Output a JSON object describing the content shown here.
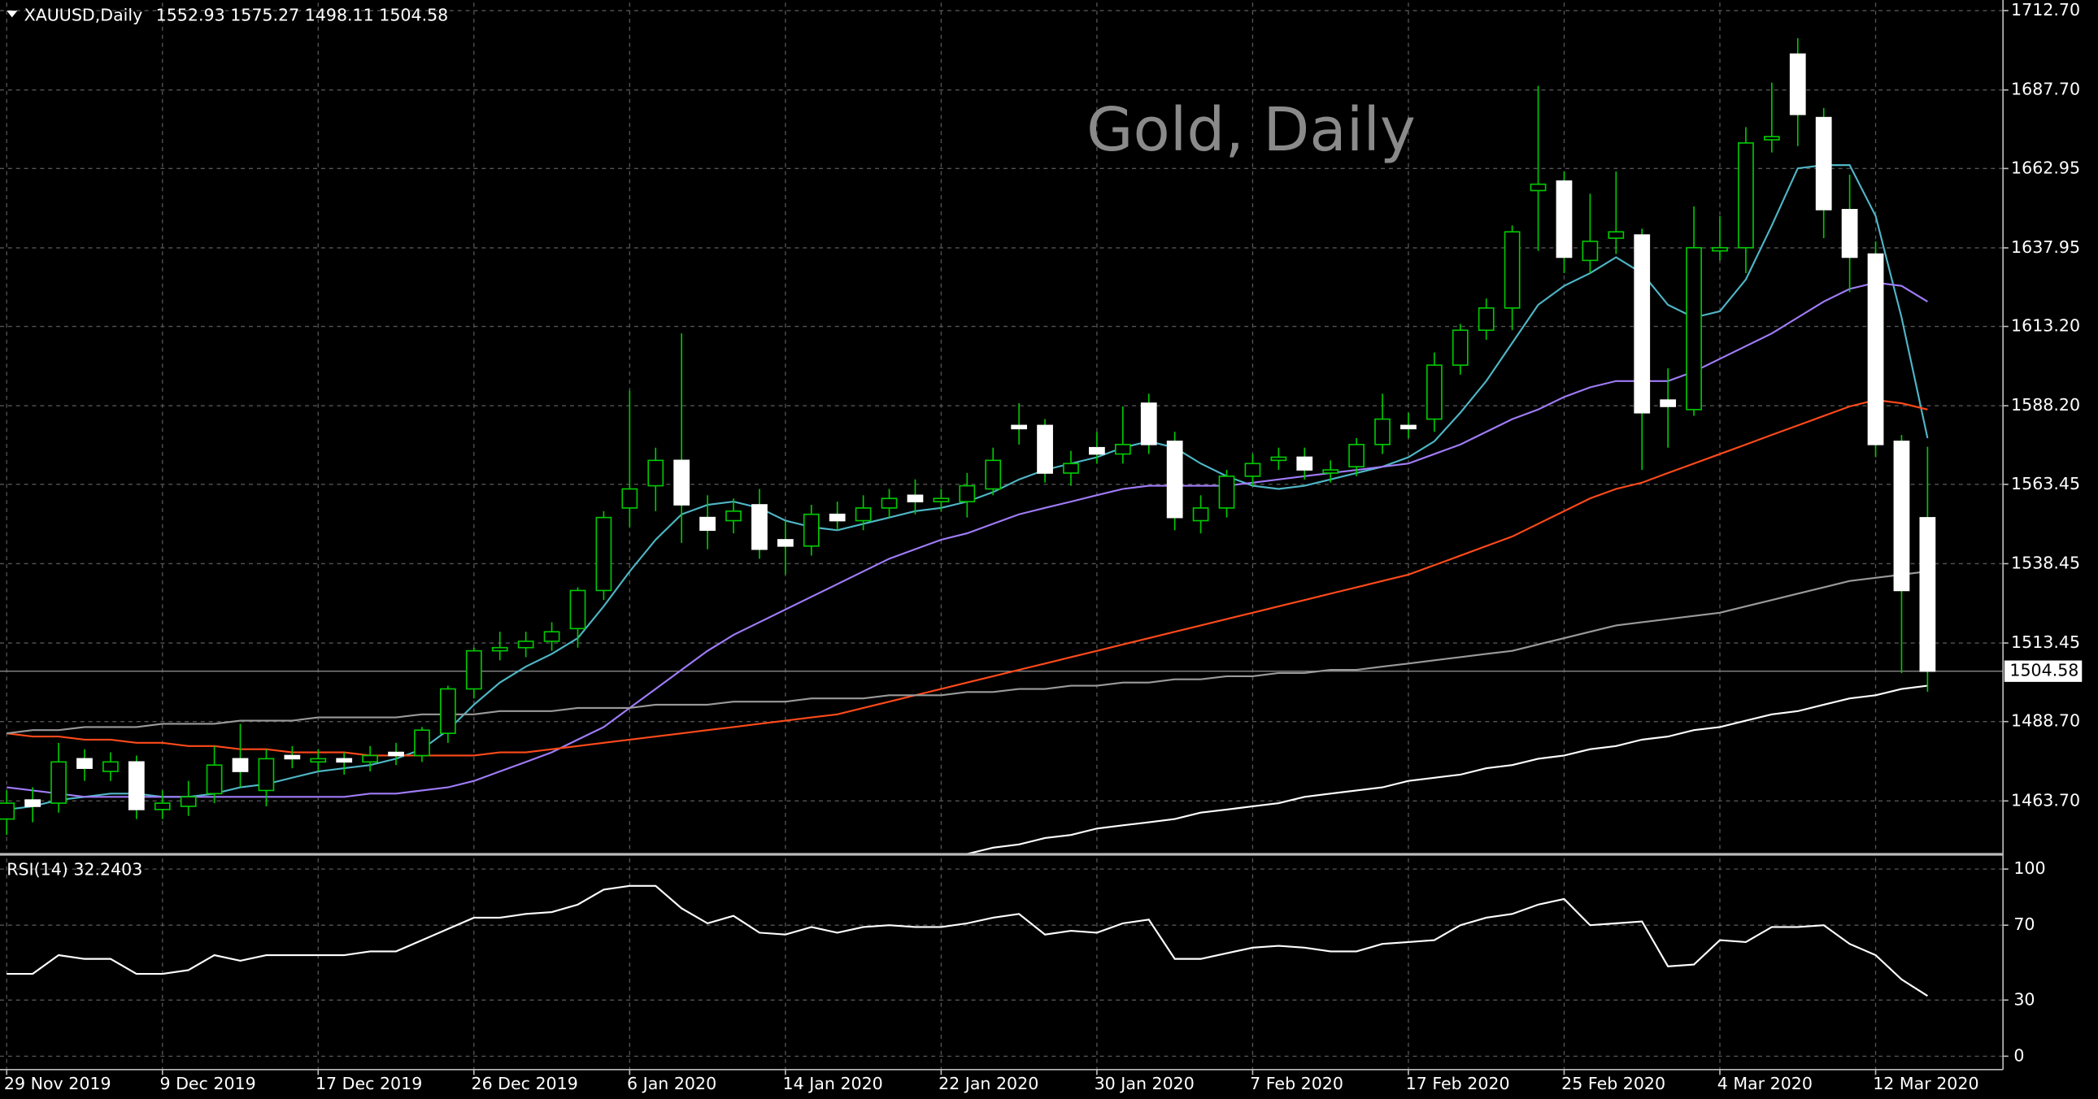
{
  "chart_data": {
    "type": "candlestick",
    "symbol": "XAUUSD,Daily",
    "title": "Gold, Daily",
    "categories": [
      "29 Nov 2019",
      null,
      null,
      null,
      null,
      null,
      "9 Dec 2019",
      null,
      null,
      null,
      null,
      null,
      "17 Dec 2019",
      null,
      null,
      null,
      null,
      null,
      "26 Dec 2019",
      null,
      null,
      null,
      null,
      null,
      "6 Jan 2020",
      null,
      null,
      null,
      null,
      null,
      "14 Jan 2020",
      null,
      null,
      null,
      null,
      null,
      "22 Jan 2020",
      null,
      null,
      null,
      null,
      null,
      "30 Jan 2020",
      null,
      null,
      null,
      null,
      null,
      "7 Feb 2020",
      null,
      null,
      null,
      null,
      null,
      "17 Feb 2020",
      null,
      null,
      null,
      null,
      null,
      "25 Feb 2020",
      null,
      null,
      null,
      null,
      null,
      "4 Mar 2020",
      null,
      null,
      null,
      null,
      null,
      "12 Mar 2020",
      null,
      null
    ],
    "open": [
      1458,
      1464,
      1463,
      1477,
      1473,
      1476,
      1461,
      1462,
      1466,
      1477,
      1467,
      1478,
      1476,
      1477,
      1476,
      1479,
      1478,
      1485,
      1499,
      1511,
      1512,
      1514,
      1518,
      1530,
      1556,
      1563,
      1571,
      1553,
      1552,
      1557,
      1546,
      1544,
      1554,
      1552,
      1556,
      1560,
      1558,
      1558,
      1562,
      1582,
      1582,
      1567,
      1575,
      1573,
      1589,
      1577,
      1552,
      1556,
      1566,
      1571,
      1572,
      1567,
      1569,
      1576,
      1582,
      1584,
      1601,
      1612,
      1619,
      1656,
      1659,
      1634,
      1641,
      1642,
      1590,
      1587,
      1637,
      1638,
      1672,
      1699,
      1679,
      1650,
      1636,
      1577,
      1552.93
    ],
    "high": [
      1467,
      1468,
      1482,
      1480,
      1479,
      1478,
      1467,
      1470,
      1481,
      1488,
      1480,
      1481,
      1480,
      1479,
      1481,
      1482,
      1487,
      1500,
      1512,
      1517,
      1517,
      1520,
      1531,
      1555,
      1593,
      1575,
      1611,
      1560,
      1559,
      1562,
      1552,
      1557,
      1558,
      1560,
      1562,
      1565,
      1562,
      1567,
      1575,
      1589,
      1584,
      1574,
      1580,
      1588,
      1592,
      1580,
      1560,
      1568,
      1573,
      1575,
      1575,
      1571,
      1578,
      1592,
      1586,
      1605,
      1614,
      1622,
      1645,
      1689,
      1662,
      1655,
      1662,
      1644,
      1600,
      1651,
      1648,
      1676,
      1690,
      1704,
      1682,
      1661,
      1640,
      1579,
      1575.27
    ],
    "low": [
      1453,
      1457,
      1460,
      1470,
      1470,
      1458,
      1458,
      1459,
      1463,
      1468,
      1462,
      1474,
      1473,
      1472,
      1473,
      1475,
      1476,
      1482,
      1496,
      1508,
      1509,
      1511,
      1512,
      1527,
      1550,
      1555,
      1545,
      1543,
      1548,
      1540,
      1535,
      1541,
      1549,
      1549,
      1553,
      1554,
      1555,
      1553,
      1560,
      1576,
      1564,
      1563,
      1570,
      1570,
      1573,
      1549,
      1548,
      1553,
      1563,
      1568,
      1565,
      1564,
      1566,
      1573,
      1578,
      1580,
      1598,
      1609,
      1612,
      1637,
      1630,
      1630,
      1636,
      1568,
      1575,
      1585,
      1634,
      1630,
      1668,
      1670,
      1641,
      1624,
      1572,
      1504,
      1498.11
    ],
    "close": [
      1463,
      1462,
      1476,
      1474,
      1476,
      1461,
      1463,
      1465,
      1475,
      1473,
      1477,
      1477,
      1477,
      1476,
      1478,
      1478,
      1486,
      1499,
      1511,
      1512,
      1514,
      1517,
      1530,
      1553,
      1562,
      1571,
      1557,
      1549,
      1555,
      1543,
      1544,
      1554,
      1552,
      1556,
      1559,
      1558,
      1559,
      1563,
      1571,
      1581,
      1567,
      1570,
      1573,
      1576,
      1576,
      1553,
      1556,
      1566,
      1570,
      1572,
      1568,
      1568,
      1576,
      1584,
      1581,
      1601,
      1612,
      1619,
      1643,
      1658,
      1635,
      1640,
      1643,
      1586,
      1588,
      1638,
      1638,
      1671,
      1673,
      1680,
      1650,
      1635,
      1576,
      1530,
      1504.58
    ],
    "up_color": "#00c800",
    "up_fill": "#000000",
    "down_color": "#ffffff",
    "down_fill": "#ffffff",
    "ylim": [
      1447.3,
      1715.2
    ],
    "yticks": [
      {
        "value": 1712.7,
        "label": "1712.70"
      },
      {
        "value": 1687.7,
        "label": "1687.70"
      },
      {
        "value": 1662.95,
        "label": "1662.95"
      },
      {
        "value": 1637.95,
        "label": "1637.95"
      },
      {
        "value": 1613.2,
        "label": "1613.20"
      },
      {
        "value": 1588.2,
        "label": "1588.20"
      },
      {
        "value": 1563.45,
        "label": "1563.45"
      },
      {
        "value": 1538.45,
        "label": "1538.45"
      },
      {
        "value": 1513.45,
        "label": "1513.45"
      },
      {
        "value": 1488.7,
        "label": "1488.70"
      },
      {
        "value": 1463.7,
        "label": "1463.70"
      }
    ],
    "grid": true,
    "series": [
      {
        "color": "#4fb6c6",
        "values": [
          1461,
          1462,
          1464,
          1465,
          1466,
          1466,
          1465,
          1465,
          1466,
          1468,
          1469,
          1471,
          1473,
          1474,
          1475,
          1477,
          1480,
          1486,
          1494,
          1501,
          1506,
          1510,
          1515,
          1525,
          1536,
          1546,
          1554,
          1557,
          1558,
          1556,
          1552,
          1550,
          1549,
          1551,
          1553,
          1555,
          1556,
          1558,
          1561,
          1565,
          1568,
          1570,
          1572,
          1575,
          1577,
          1575,
          1570,
          1566,
          1563,
          1562,
          1563,
          1565,
          1567,
          1569,
          1572,
          1577,
          1586,
          1596,
          1608,
          1620,
          1626,
          1630,
          1635,
          1630,
          1620,
          1616,
          1618,
          1628,
          1645,
          1663,
          1664,
          1664,
          1648,
          1616,
          1578
        ]
      },
      {
        "color": "#a07cf8",
        "values": [
          1468,
          1467,
          1466,
          1465,
          1465,
          1465,
          1465,
          1465,
          1465,
          1465,
          1465,
          1465,
          1465,
          1465,
          1466,
          1466,
          1467,
          1468,
          1470,
          1473,
          1476,
          1479,
          1483,
          1487,
          1493,
          1499,
          1505,
          1511,
          1516,
          1520,
          1524,
          1528,
          1532,
          1536,
          1540,
          1543,
          1546,
          1548,
          1551,
          1554,
          1556,
          1558,
          1560,
          1562,
          1563,
          1563,
          1563,
          1563,
          1564,
          1565,
          1566,
          1567,
          1568,
          1569,
          1570,
          1573,
          1576,
          1580,
          1584,
          1587,
          1591,
          1594,
          1596,
          1596,
          1596,
          1599,
          1603,
          1607,
          1611,
          1616,
          1621,
          1625,
          1627,
          1626,
          1621
        ]
      },
      {
        "color": "#ff4a1a",
        "values": [
          1485,
          1484,
          1484,
          1483,
          1483,
          1482,
          1482,
          1481,
          1481,
          1480,
          1480,
          1479,
          1479,
          1479,
          1478,
          1478,
          1478,
          1478,
          1478,
          1479,
          1479,
          1480,
          1481,
          1482,
          1483,
          1484,
          1485,
          1486,
          1487,
          1488,
          1489,
          1490,
          1491,
          1493,
          1495,
          1497,
          1499,
          1501,
          1503,
          1505,
          1507,
          1509,
          1511,
          1513,
          1515,
          1517,
          1519,
          1521,
          1523,
          1525,
          1527,
          1529,
          1531,
          1533,
          1535,
          1538,
          1541,
          1544,
          1547,
          1551,
          1555,
          1559,
          1562,
          1564,
          1567,
          1570,
          1573,
          1576,
          1579,
          1582,
          1585,
          1588,
          1590,
          1589,
          1587
        ]
      },
      {
        "color": "#9a9a9a",
        "values": [
          1485,
          1486,
          1486,
          1487,
          1487,
          1487,
          1488,
          1488,
          1488,
          1489,
          1489,
          1489,
          1490,
          1490,
          1490,
          1490,
          1491,
          1491,
          1491,
          1492,
          1492,
          1492,
          1493,
          1493,
          1493,
          1494,
          1494,
          1494,
          1495,
          1495,
          1495,
          1496,
          1496,
          1496,
          1497,
          1497,
          1497,
          1498,
          1498,
          1499,
          1499,
          1500,
          1500,
          1501,
          1501,
          1502,
          1502,
          1503,
          1503,
          1504,
          1504,
          1505,
          1505,
          1506,
          1507,
          1508,
          1509,
          1510,
          1511,
          1513,
          1515,
          1517,
          1519,
          1520,
          1521,
          1522,
          1523,
          1525,
          1527,
          1529,
          1531,
          1533,
          1534,
          1535,
          1536
        ]
      },
      {
        "color": "#ffffff",
        "values": [
          null,
          null,
          null,
          null,
          null,
          null,
          null,
          null,
          null,
          null,
          null,
          null,
          null,
          null,
          null,
          null,
          null,
          null,
          null,
          null,
          null,
          null,
          null,
          null,
          null,
          null,
          null,
          null,
          null,
          null,
          null,
          null,
          null,
          null,
          null,
          null,
          null,
          1447,
          1449,
          1450,
          1452,
          1453,
          1455,
          1456,
          1457,
          1458,
          1460,
          1461,
          1462,
          1463,
          1465,
          1466,
          1467,
          1468,
          1470,
          1471,
          1472,
          1474,
          1475,
          1477,
          1478,
          1480,
          1481,
          1483,
          1484,
          1486,
          1487,
          1489,
          1491,
          1492,
          1494,
          1496,
          1497,
          1499,
          1500
        ]
      }
    ],
    "rsi": {
      "label": "RSI(14)",
      "color": "#ffffff",
      "ylim": [
        0,
        100
      ],
      "yticks": [
        100,
        70,
        30,
        0
      ],
      "values": [
        44,
        44,
        54,
        52,
        52,
        44,
        44,
        46,
        54,
        51,
        54,
        54,
        54,
        54,
        56,
        56,
        62,
        68,
        74,
        74,
        76,
        77,
        81,
        89,
        91,
        91,
        79,
        71,
        75,
        66,
        65,
        69,
        66,
        69,
        70,
        69,
        69,
        71,
        74,
        76,
        65,
        67,
        66,
        71,
        73,
        52,
        52,
        55,
        58,
        59,
        58,
        56,
        56,
        60,
        61,
        62,
        70,
        74,
        76,
        81,
        84,
        70,
        71,
        72,
        48,
        49,
        62,
        61,
        69,
        69,
        70,
        60,
        54,
        41,
        32.2403
      ]
    }
  }
}
